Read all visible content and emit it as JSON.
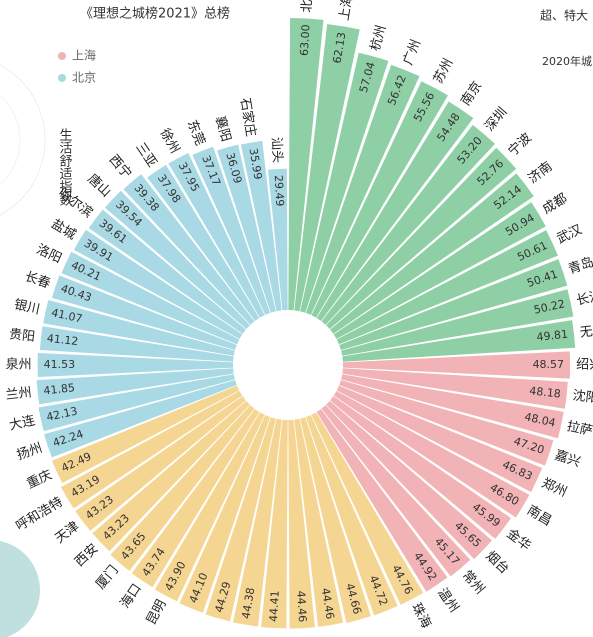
{
  "chart_data": {
    "type": "radial_bar",
    "title": "《理想之城榜2021》总榜",
    "subtitle": "超、特大",
    "note": "2020年城",
    "axis_label": "生活舒适指数",
    "legend": [
      {
        "name": "上海",
        "color": "#f2b3b6"
      },
      {
        "name": "北京",
        "color": "#a8d9e4"
      }
    ],
    "categories": [
      "北京",
      "上海",
      "杭州",
      "广州",
      "苏州",
      "南京",
      "深圳",
      "宁波",
      "济南",
      "成都",
      "武汉",
      "青岛",
      "长沙",
      "无锡",
      "绍兴",
      "沈阳",
      "拉萨",
      "嘉兴",
      "郑州",
      "南昌",
      "金华",
      "烟台",
      "常州",
      "温州",
      "珠海",
      null,
      null,
      null,
      null,
      null,
      null,
      null,
      null,
      "昆明",
      "海口",
      "厦门",
      "西安",
      "天津",
      "呼和浩特",
      "重庆",
      "扬州",
      "大连",
      "兰州",
      "泉州",
      "贵阳",
      "银川",
      "长春",
      "洛阳",
      "盐城",
      "哈尔滨",
      "唐山",
      "西宁",
      "三亚",
      "徐州",
      "东莞",
      "襄阳",
      "石家庄",
      "汕头"
    ],
    "values": [
      63,
      62.13,
      57.04,
      56.42,
      55.56,
      54.48,
      53.2,
      52.76,
      52.14,
      50.94,
      50.61,
      50.41,
      50.22,
      49.81,
      48.57,
      48.18,
      48.04,
      47.2,
      46.83,
      46.8,
      45.99,
      45.65,
      45.17,
      44.92,
      44.76,
      44.72,
      44.66,
      44.46,
      44.46,
      44.41,
      44.38,
      44.29,
      44.1,
      43.9,
      43.74,
      43.65,
      43.23,
      43.23,
      43.19,
      42.49,
      42.24,
      42.13,
      41.85,
      41.53,
      41.12,
      41.07,
      40.43,
      40.21,
      39.91,
      39.61,
      39.54,
      39.38,
      37.98,
      37.95,
      37.17,
      36.09,
      35.99,
      29.49
    ],
    "value_labels": [
      "63.00",
      "62.13",
      "57.04",
      "56.42",
      "55.56",
      "54.48",
      "53.20",
      "52.76",
      "52.14",
      "50.94",
      "50.61",
      "50.41",
      "50.22",
      "49.81",
      "48.57",
      "48.18",
      "48.04",
      "47.20",
      "46.83",
      "46.80",
      "45.99",
      "45.65",
      "45.17",
      "44.92",
      "44.76",
      "44.72",
      "44.66",
      "44.46",
      "44.46",
      "44.41",
      "44.38",
      "44.29",
      "44.10",
      "43.90",
      "43.74",
      "43.65",
      "43.23",
      "43.23",
      "43.19",
      "42.49",
      "42.24",
      "42.13",
      "41.85",
      "41.53",
      "41.12",
      "41.07",
      "40.43",
      "40.21",
      "39.91",
      "39.61",
      "39.54",
      "39.38",
      "37.98",
      "37.95",
      "37.17",
      "36.09",
      "35.99",
      "29.49"
    ],
    "colors": [
      "#8fcfa6",
      "#8fcfa6",
      "#8fcfa6",
      "#8fcfa6",
      "#8fcfa6",
      "#8fcfa6",
      "#8fcfa6",
      "#8fcfa6",
      "#8fcfa6",
      "#8fcfa6",
      "#8fcfa6",
      "#8fcfa6",
      "#8fcfa6",
      "#8fcfa6",
      "#f2b3b6",
      "#f2b3b6",
      "#f2b3b6",
      "#f2b3b6",
      "#f2b3b6",
      "#f2b3b6",
      "#f2b3b6",
      "#f2b3b6",
      "#f2b3b6",
      "#f2b3b6",
      "#f5d592",
      "#f5d592",
      "#f5d592",
      "#f5d592",
      "#f5d592",
      "#f5d592",
      "#f5d592",
      "#f5d592",
      "#f5d592",
      "#f5d592",
      "#f5d592",
      "#f5d592",
      "#f5d592",
      "#f5d592",
      "#f5d592",
      "#f5d592",
      "#a8d9e4",
      "#a8d9e4",
      "#a8d9e4",
      "#a8d9e4",
      "#a8d9e4",
      "#a8d9e4",
      "#a8d9e4",
      "#a8d9e4",
      "#a8d9e4",
      "#a8d9e4",
      "#a8d9e4",
      "#a8d9e4",
      "#a8d9e4",
      "#a8d9e4",
      "#a8d9e4",
      "#a8d9e4",
      "#a8d9e4",
      "#a8d9e4"
    ]
  }
}
